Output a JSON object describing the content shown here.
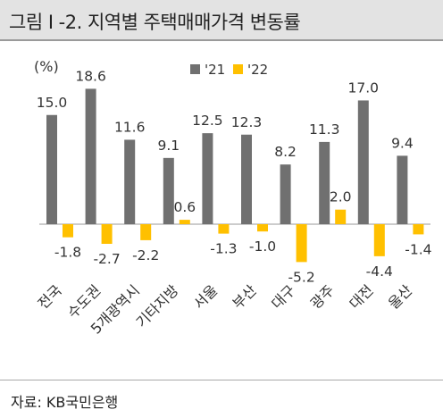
{
  "title": "그림 I -2. 지역별 주택매매가격 변동률",
  "source": "자료: KB국민은행",
  "chart_data": {
    "type": "bar",
    "unit_label": "(%)",
    "categories": [
      "전국",
      "수도권",
      "5개광역시",
      "기타지방",
      "서울",
      "부산",
      "대구",
      "광주",
      "대전",
      "울산"
    ],
    "series": [
      {
        "name": "'21",
        "color": "#707070",
        "values": [
          15.0,
          18.6,
          11.6,
          9.1,
          12.5,
          12.3,
          8.2,
          11.3,
          17.0,
          9.4
        ]
      },
      {
        "name": "'22",
        "color": "#ffc000",
        "values": [
          -1.8,
          -2.7,
          -2.2,
          0.6,
          -1.3,
          -1.0,
          -5.2,
          2.0,
          -4.4,
          -1.4
        ]
      }
    ],
    "value_labels": [
      [
        "15.0",
        "18.6",
        "11.6",
        "9.1",
        "12.5",
        "12.3",
        "8.2",
        "11.3",
        "17.0",
        "9.4"
      ],
      [
        "-1.8",
        "-2.7",
        "-2.2",
        "0.6",
        "-1.3",
        "-1.0",
        "-5.2",
        "2.0",
        "-4.4",
        "-1.4"
      ]
    ],
    "ylim": [
      -7,
      20
    ],
    "grid": false,
    "legend_position": "top-right"
  }
}
